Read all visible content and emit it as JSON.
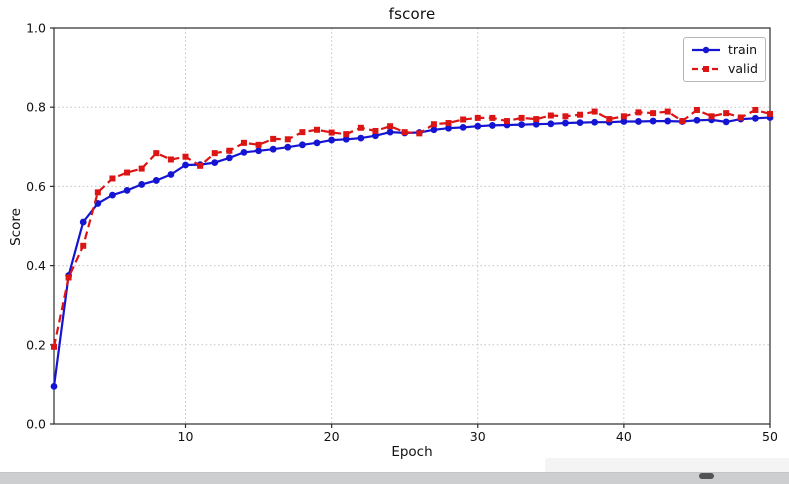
{
  "figure": {
    "title": "fscore",
    "xlabel": "Epoch",
    "ylabel": "Score"
  },
  "colors": {
    "train": "#1414d2",
    "valid": "#dc1414",
    "grid": "#c2c2c2",
    "spine": "#2b2b2b",
    "tick_text": "#111111",
    "strip": "#cdced0",
    "thumb": "#525356"
  },
  "chart_data": {
    "type": "line",
    "title": "fscore",
    "xlabel": "Epoch",
    "ylabel": "Score",
    "xlim": [
      1,
      50
    ],
    "ylim": [
      0.0,
      1.0
    ],
    "xticks": [
      "10",
      "20",
      "30",
      "40",
      "50"
    ],
    "yticks": [
      "0.0",
      "0.2",
      "0.4",
      "0.6",
      "0.8",
      "1.0"
    ],
    "grid": true,
    "legend_position": "upper right",
    "x": [
      1,
      2,
      3,
      4,
      5,
      6,
      7,
      8,
      9,
      10,
      11,
      12,
      13,
      14,
      15,
      16,
      17,
      18,
      19,
      20,
      21,
      22,
      23,
      24,
      25,
      26,
      27,
      28,
      29,
      30,
      31,
      32,
      33,
      34,
      35,
      36,
      37,
      38,
      39,
      40,
      41,
      42,
      43,
      44,
      45,
      46,
      47,
      48,
      49,
      50
    ],
    "series": [
      {
        "name": "train",
        "color": "#1414d2",
        "style": "solid",
        "marker": "circle",
        "values": [
          0.095,
          0.375,
          0.51,
          0.557,
          0.578,
          0.59,
          0.605,
          0.615,
          0.63,
          0.654,
          0.655,
          0.66,
          0.672,
          0.686,
          0.69,
          0.694,
          0.699,
          0.705,
          0.71,
          0.717,
          0.719,
          0.722,
          0.728,
          0.737,
          0.735,
          0.736,
          0.743,
          0.747,
          0.749,
          0.752,
          0.754,
          0.755,
          0.756,
          0.757,
          0.758,
          0.76,
          0.761,
          0.762,
          0.762,
          0.764,
          0.764,
          0.765,
          0.765,
          0.764,
          0.767,
          0.768,
          0.763,
          0.77,
          0.772,
          0.774
        ]
      },
      {
        "name": "valid",
        "color": "#dc1414",
        "style": "dashed",
        "marker": "square",
        "values": [
          0.195,
          0.37,
          0.45,
          0.585,
          0.62,
          0.635,
          0.645,
          0.684,
          0.668,
          0.675,
          0.652,
          0.684,
          0.69,
          0.71,
          0.705,
          0.72,
          0.719,
          0.737,
          0.743,
          0.736,
          0.732,
          0.748,
          0.74,
          0.752,
          0.737,
          0.734,
          0.757,
          0.76,
          0.769,
          0.773,
          0.773,
          0.765,
          0.773,
          0.77,
          0.779,
          0.777,
          0.781,
          0.789,
          0.77,
          0.777,
          0.787,
          0.785,
          0.789,
          0.765,
          0.793,
          0.777,
          0.785,
          0.774,
          0.793,
          0.783
        ]
      }
    ]
  }
}
